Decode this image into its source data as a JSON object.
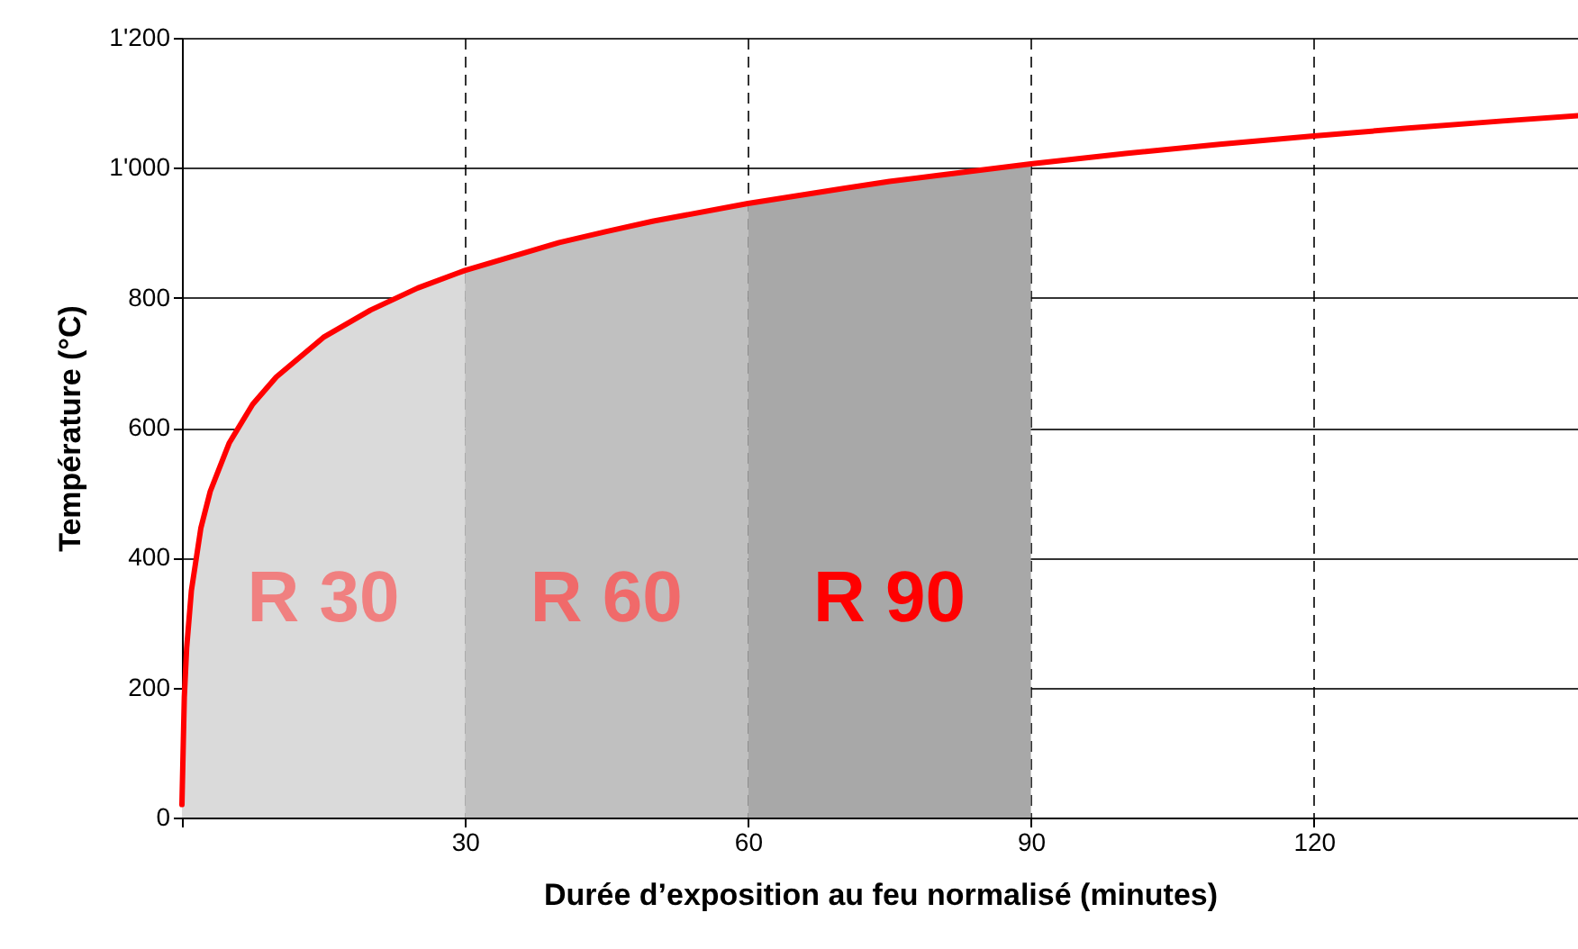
{
  "chart_data": {
    "type": "line",
    "xlabel": "Durée d’exposition au feu normalisé (minutes)",
    "ylabel": "Température (°C)",
    "xlim": [
      0,
      148
    ],
    "xticks": [
      {
        "value": 0,
        "label": null
      },
      30,
      60,
      90,
      120
    ],
    "ylim": [
      0,
      1200
    ],
    "yticks": [
      0,
      200,
      400,
      600,
      800,
      {
        "value": 1000,
        "label": "1'000"
      },
      {
        "value": 1200,
        "label": "1'200"
      }
    ],
    "grid": true,
    "legend": false,
    "series": [
      {
        "type": "area",
        "name": "R 30",
        "color": "#dadada",
        "x": [
          0,
          0.25,
          0.5,
          1,
          2,
          3,
          5,
          7.5,
          10,
          15,
          20,
          25,
          30
        ],
        "values": [
          20,
          185,
          261,
          349,
          445,
          502,
          576,
          636,
          678,
          739,
          781,
          815,
          842
        ]
      },
      {
        "type": "area",
        "name": "R 60",
        "color": "#c0c0c0",
        "x": [
          30,
          40,
          45,
          50,
          60
        ],
        "values": [
          842,
          885,
          902,
          918,
          945
        ]
      },
      {
        "type": "area",
        "name": "R 90",
        "color": "#a8a8a8",
        "x": [
          60,
          70,
          75,
          80,
          90
        ],
        "values": [
          945,
          968,
          979,
          988,
          1006
        ]
      },
      {
        "color": "#ff0000",
        "x": [
          0,
          0.25,
          0.5,
          1,
          2,
          3,
          5,
          7.5,
          10,
          15,
          20,
          25,
          30,
          40,
          45,
          50,
          60,
          70,
          75,
          80,
          90,
          100,
          110,
          120,
          130,
          140,
          148
        ],
        "values": [
          20,
          185,
          261,
          349,
          445,
          502,
          576,
          636,
          678,
          739,
          781,
          815,
          842,
          885,
          902,
          918,
          945,
          968,
          979,
          988,
          1006,
          1022,
          1036,
          1049,
          1061,
          1072,
          1080
        ]
      }
    ]
  }
}
